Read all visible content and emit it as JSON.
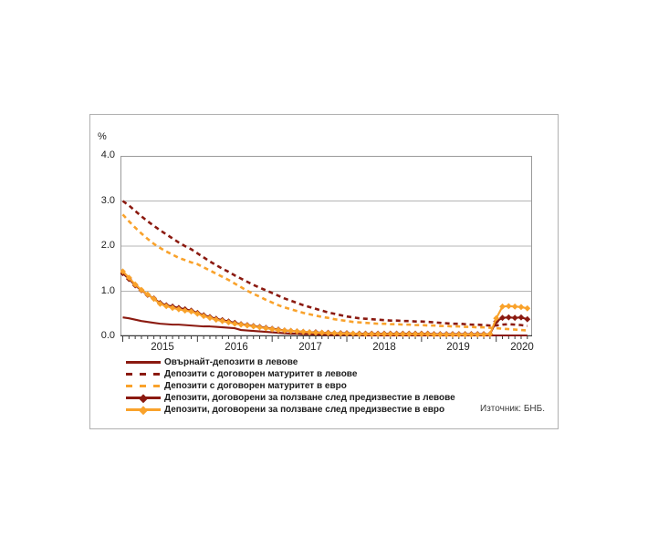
{
  "chart_data": {
    "type": "line",
    "title": "",
    "ylabel": "%",
    "ylim": [
      0,
      4
    ],
    "y_ticks": [
      "4.0",
      "3.0",
      "2.0",
      "1.0",
      "0.0"
    ],
    "x_tick_labels": [
      "2015",
      "2016",
      "2017",
      "2018",
      "2019",
      "2020"
    ],
    "x_unit": "month",
    "x_start": "2015-01",
    "x_end": "2020-06",
    "grid": "horizontal",
    "legend_position": "bottom-left",
    "source_note": "Източник: БНБ.",
    "series": [
      {
        "name": "Овърнайт-депозити в левове",
        "color": "#8b1a10",
        "style": "solid",
        "marker": "none",
        "values": [
          0.42,
          0.4,
          0.37,
          0.34,
          0.32,
          0.3,
          0.28,
          0.27,
          0.26,
          0.26,
          0.25,
          0.24,
          0.23,
          0.22,
          0.22,
          0.21,
          0.2,
          0.19,
          0.18,
          0.14,
          0.13,
          0.12,
          0.11,
          0.1,
          0.09,
          0.08,
          0.07,
          0.06,
          0.06,
          0.05,
          0.05,
          0.04,
          0.04,
          0.03,
          0.03,
          0.03,
          0.03,
          0.03,
          0.03,
          0.02,
          0.02,
          0.02,
          0.02,
          0.02,
          0.02,
          0.02,
          0.02,
          0.02,
          0.02,
          0.02,
          0.02,
          0.02,
          0.02,
          0.02,
          0.02,
          0.02,
          0.02,
          0.02,
          0.02,
          0.02,
          0.02,
          0.02,
          0.02,
          0.02,
          0.02,
          0.02
        ]
      },
      {
        "name": "Депозити с договорен матуритет в левове",
        "color": "#8b1a10",
        "style": "dashed",
        "marker": "none",
        "values": [
          3.0,
          2.9,
          2.78,
          2.66,
          2.55,
          2.45,
          2.35,
          2.26,
          2.17,
          2.08,
          2.0,
          1.93,
          1.84,
          1.75,
          1.66,
          1.58,
          1.5,
          1.43,
          1.35,
          1.28,
          1.21,
          1.14,
          1.08,
          1.02,
          0.96,
          0.9,
          0.84,
          0.79,
          0.74,
          0.69,
          0.65,
          0.61,
          0.57,
          0.53,
          0.5,
          0.47,
          0.44,
          0.42,
          0.4,
          0.39,
          0.38,
          0.37,
          0.36,
          0.35,
          0.35,
          0.34,
          0.34,
          0.33,
          0.33,
          0.32,
          0.31,
          0.3,
          0.29,
          0.28,
          0.28,
          0.27,
          0.26,
          0.26,
          0.25,
          0.24,
          0.24,
          0.26,
          0.27,
          0.26,
          0.25,
          0.23
        ]
      },
      {
        "name": "Депозити с договорен матуритет в евро",
        "color": "#f9a22b",
        "style": "dashed",
        "marker": "none",
        "values": [
          2.7,
          2.55,
          2.41,
          2.28,
          2.16,
          2.05,
          1.96,
          1.88,
          1.81,
          1.74,
          1.69,
          1.64,
          1.6,
          1.53,
          1.46,
          1.39,
          1.32,
          1.25,
          1.17,
          1.09,
          1.01,
          0.94,
          0.88,
          0.81,
          0.75,
          0.69,
          0.64,
          0.6,
          0.56,
          0.52,
          0.49,
          0.46,
          0.43,
          0.41,
          0.38,
          0.36,
          0.34,
          0.32,
          0.31,
          0.3,
          0.29,
          0.28,
          0.28,
          0.27,
          0.27,
          0.26,
          0.26,
          0.25,
          0.25,
          0.24,
          0.24,
          0.23,
          0.23,
          0.22,
          0.22,
          0.21,
          0.21,
          0.2,
          0.2,
          0.19,
          0.18,
          0.17,
          0.16,
          0.15,
          0.14,
          0.13
        ]
      },
      {
        "name": "Депозити, договорени за ползване след предизвестие в левове",
        "color": "#8b1a10",
        "style": "solid",
        "marker": "diamond",
        "values": [
          1.4,
          1.27,
          1.13,
          1.02,
          0.92,
          0.84,
          0.74,
          0.69,
          0.66,
          0.63,
          0.6,
          0.57,
          0.52,
          0.47,
          0.43,
          0.39,
          0.36,
          0.33,
          0.3,
          0.27,
          0.25,
          0.23,
          0.21,
          0.19,
          0.17,
          0.15,
          0.13,
          0.12,
          0.11,
          0.1,
          0.09,
          0.09,
          0.08,
          0.08,
          0.07,
          0.07,
          0.07,
          0.06,
          0.06,
          0.06,
          0.06,
          0.06,
          0.06,
          0.06,
          0.06,
          0.06,
          0.06,
          0.06,
          0.06,
          0.06,
          0.05,
          0.05,
          0.05,
          0.05,
          0.05,
          0.05,
          0.05,
          0.05,
          0.05,
          0.05,
          0.33,
          0.41,
          0.42,
          0.41,
          0.42,
          0.38
        ]
      },
      {
        "name": "Депозити, договорени за ползване след предизвестие в евро",
        "color": "#f9a22b",
        "style": "solid",
        "marker": "diamond",
        "values": [
          1.44,
          1.3,
          1.15,
          1.03,
          0.93,
          0.83,
          0.72,
          0.67,
          0.63,
          0.6,
          0.57,
          0.55,
          0.5,
          0.45,
          0.41,
          0.37,
          0.34,
          0.31,
          0.28,
          0.26,
          0.24,
          0.22,
          0.2,
          0.18,
          0.16,
          0.14,
          0.13,
          0.12,
          0.11,
          0.1,
          0.09,
          0.08,
          0.08,
          0.07,
          0.07,
          0.06,
          0.06,
          0.06,
          0.05,
          0.05,
          0.05,
          0.05,
          0.05,
          0.05,
          0.05,
          0.05,
          0.05,
          0.05,
          0.05,
          0.05,
          0.04,
          0.04,
          0.04,
          0.04,
          0.04,
          0.04,
          0.04,
          0.04,
          0.04,
          0.05,
          0.4,
          0.66,
          0.67,
          0.66,
          0.65,
          0.62
        ]
      }
    ],
    "layout_colors": {
      "grid": "#b4b4b4",
      "frame": "#9a9a9a",
      "axis": "#3a3a3a",
      "text": "#222222"
    }
  }
}
